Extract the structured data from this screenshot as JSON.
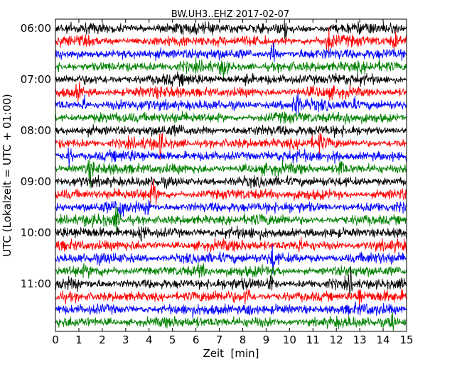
{
  "chart_data": {
    "type": "line",
    "title": "BW.UH3..EHZ 2017-02-07",
    "xlabel": "Zeit  [min]",
    "ylabel": "UTC (Lokalzeit = UTC + 01:00)",
    "xlim": [
      0,
      15
    ],
    "x_ticks": [
      "0",
      "1",
      "2",
      "3",
      "4",
      "5",
      "6",
      "7",
      "8",
      "9",
      "10",
      "11",
      "12",
      "13",
      "14",
      "15"
    ],
    "y_ticks": [
      "06:00",
      "07:00",
      "08:00",
      "09:00",
      "10:00",
      "11:00"
    ],
    "trace_count": 24,
    "trace_interval_min": 15,
    "first_trace_start": "06:00",
    "colors": [
      "#000000",
      "#ff0000",
      "#0000ff",
      "#008000"
    ],
    "grid": false,
    "legend": "none",
    "events": [
      {
        "trace": 0,
        "minute": 9.8,
        "amp": 2.5
      },
      {
        "trace": 1,
        "minute": 11.7,
        "amp": 3.0
      },
      {
        "trace": 1,
        "minute": 14.5,
        "amp": 2.0
      },
      {
        "trace": 2,
        "minute": 9.3,
        "amp": 2.8
      },
      {
        "trace": 3,
        "minute": 7.2,
        "amp": 3.0
      },
      {
        "trace": 4,
        "minute": 8.2,
        "amp": 2.0
      },
      {
        "trace": 5,
        "minute": 1.0,
        "amp": 1.8
      },
      {
        "trace": 6,
        "minute": 1.2,
        "amp": 2.5
      },
      {
        "trace": 6,
        "minute": 10.3,
        "amp": 4.0
      },
      {
        "trace": 6,
        "minute": 12.7,
        "amp": 2.5
      },
      {
        "trace": 7,
        "minute": 12.5,
        "amp": 2.2
      },
      {
        "trace": 9,
        "minute": 4.5,
        "amp": 2.5
      },
      {
        "trace": 9,
        "minute": 11.3,
        "amp": 2.0
      },
      {
        "trace": 10,
        "minute": 0.6,
        "amp": 2.2
      },
      {
        "trace": 10,
        "minute": 12.0,
        "amp": 2.6
      },
      {
        "trace": 11,
        "minute": 1.5,
        "amp": 3.0
      },
      {
        "trace": 11,
        "minute": 12.2,
        "amp": 3.0
      },
      {
        "trace": 13,
        "minute": 4.2,
        "amp": 3.0
      },
      {
        "trace": 14,
        "minute": 2.8,
        "amp": 3.2
      },
      {
        "trace": 14,
        "minute": 4.0,
        "amp": 2.6
      },
      {
        "trace": 15,
        "minute": 2.6,
        "amp": 2.5
      },
      {
        "trace": 16,
        "minute": 3.7,
        "amp": 3.0
      },
      {
        "trace": 17,
        "minute": 10.4,
        "amp": 2.0
      },
      {
        "trace": 18,
        "minute": 9.3,
        "amp": 3.5
      },
      {
        "trace": 19,
        "minute": 6.2,
        "amp": 2.0
      },
      {
        "trace": 20,
        "minute": 9.2,
        "amp": 2.8
      },
      {
        "trace": 20,
        "minute": 12.6,
        "amp": 2.6
      },
      {
        "trace": 21,
        "minute": 8.2,
        "amp": 3.5
      },
      {
        "trace": 21,
        "minute": 13.0,
        "amp": 2.6
      },
      {
        "trace": 22,
        "minute": 8.3,
        "amp": 2.0
      },
      {
        "trace": 23,
        "minute": 14.4,
        "amp": 2.5
      }
    ]
  }
}
